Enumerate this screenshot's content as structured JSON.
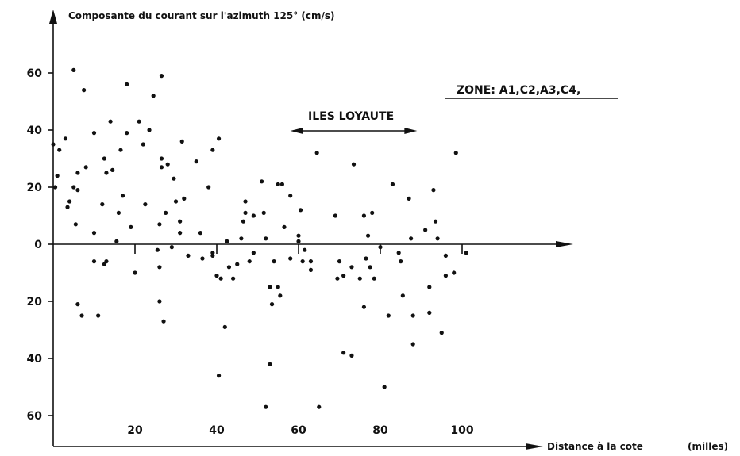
{
  "chart_data": {
    "type": "scatter",
    "title": "Composante du courant sur l'azimuth 125° (cm/s)",
    "xlabel": "Distance à la cote",
    "xlabel_unit": "(milles)",
    "xlim": [
      -2,
      112
    ],
    "ylim": [
      -66,
      78
    ],
    "x_ticks": [
      20,
      40,
      60,
      80,
      100
    ],
    "x_tick_labels": [
      "20",
      "40",
      "60",
      "80",
      "100"
    ],
    "y_ticks": [
      60,
      40,
      20,
      0,
      -20,
      -40,
      -60
    ],
    "y_tick_labels": [
      "60",
      "40",
      "20",
      "0",
      "20",
      "40",
      "60"
    ],
    "grid": false,
    "annotations": {
      "zone": "ZONE: A1,C2,A3,C4,",
      "iles": "ILES LOYAUTE",
      "iles_range": [
        58,
        89
      ]
    },
    "points": [
      [
        0,
        35
      ],
      [
        0.5,
        20
      ],
      [
        1,
        24
      ],
      [
        1.5,
        33
      ],
      [
        3,
        37
      ],
      [
        3.5,
        13
      ],
      [
        4,
        15
      ],
      [
        5,
        61
      ],
      [
        5,
        20
      ],
      [
        5.5,
        7
      ],
      [
        6,
        25
      ],
      [
        6,
        -21
      ],
      [
        6,
        19
      ],
      [
        7,
        -25
      ],
      [
        7.5,
        54
      ],
      [
        8,
        27
      ],
      [
        10,
        4
      ],
      [
        10,
        39
      ],
      [
        10,
        -6
      ],
      [
        11,
        -25
      ],
      [
        12,
        14
      ],
      [
        12.5,
        30
      ],
      [
        12.5,
        -7
      ],
      [
        13,
        25
      ],
      [
        13,
        -6
      ],
      [
        14,
        43
      ],
      [
        14.5,
        26
      ],
      [
        15.5,
        1
      ],
      [
        16,
        11
      ],
      [
        16.5,
        33
      ],
      [
        17,
        17
      ],
      [
        18,
        56
      ],
      [
        18,
        39
      ],
      [
        19,
        6
      ],
      [
        20,
        -10
      ],
      [
        21,
        43
      ],
      [
        22,
        35
      ],
      [
        22.5,
        14
      ],
      [
        23.5,
        40
      ],
      [
        24.5,
        52
      ],
      [
        25.5,
        -2
      ],
      [
        26,
        -8
      ],
      [
        26,
        7
      ],
      [
        26,
        -20
      ],
      [
        26.5,
        59
      ],
      [
        26.5,
        30
      ],
      [
        26.5,
        27
      ],
      [
        27,
        -27
      ],
      [
        27.5,
        11
      ],
      [
        28,
        28
      ],
      [
        29,
        -1
      ],
      [
        29.5,
        23
      ],
      [
        30,
        15
      ],
      [
        31,
        8
      ],
      [
        31,
        4
      ],
      [
        31.5,
        36
      ],
      [
        32,
        16
      ],
      [
        33,
        -4
      ],
      [
        35,
        29
      ],
      [
        36,
        4
      ],
      [
        36.5,
        -5
      ],
      [
        38,
        20
      ],
      [
        39,
        33
      ],
      [
        39,
        -3
      ],
      [
        39,
        -4
      ],
      [
        40,
        -11
      ],
      [
        40.5,
        -46
      ],
      [
        40.5,
        37
      ],
      [
        41,
        -12
      ],
      [
        42,
        -29
      ],
      [
        42.5,
        1
      ],
      [
        43,
        -8
      ],
      [
        44,
        -12
      ],
      [
        45,
        -7
      ],
      [
        46,
        2
      ],
      [
        46.5,
        8
      ],
      [
        47,
        15
      ],
      [
        47,
        11
      ],
      [
        48,
        -6
      ],
      [
        49,
        -3
      ],
      [
        49,
        10
      ],
      [
        51,
        22
      ],
      [
        51.5,
        11
      ],
      [
        52,
        -57
      ],
      [
        52,
        2
      ],
      [
        53,
        -42
      ],
      [
        53,
        -15
      ],
      [
        53.5,
        -21
      ],
      [
        54,
        -6
      ],
      [
        55,
        -15
      ],
      [
        55,
        21
      ],
      [
        55.5,
        -18
      ],
      [
        56,
        21
      ],
      [
        56.5,
        6
      ],
      [
        58,
        17
      ],
      [
        58,
        -5
      ],
      [
        60,
        1
      ],
      [
        60,
        3
      ],
      [
        60.5,
        12
      ],
      [
        61,
        -6
      ],
      [
        61.5,
        -2
      ],
      [
        63,
        -6
      ],
      [
        63,
        -9
      ],
      [
        64.5,
        32
      ],
      [
        65,
        -57
      ],
      [
        69,
        10
      ],
      [
        69.5,
        -12
      ],
      [
        70,
        -6
      ],
      [
        71,
        -38
      ],
      [
        71,
        -11
      ],
      [
        73,
        -39
      ],
      [
        73,
        -8
      ],
      [
        73.5,
        28
      ],
      [
        75,
        -12
      ],
      [
        76,
        10
      ],
      [
        76,
        -22
      ],
      [
        76.5,
        -5
      ],
      [
        77,
        3
      ],
      [
        77.5,
        -8
      ],
      [
        78,
        11
      ],
      [
        78.5,
        -12
      ],
      [
        80,
        -1
      ],
      [
        81,
        -50
      ],
      [
        82,
        -25
      ],
      [
        83,
        21
      ],
      [
        84.5,
        -3
      ],
      [
        85,
        -6
      ],
      [
        85.5,
        -18
      ],
      [
        87,
        16
      ],
      [
        87.5,
        2
      ],
      [
        88,
        -25
      ],
      [
        88,
        -35
      ],
      [
        91,
        5
      ],
      [
        92,
        -15
      ],
      [
        92,
        -24
      ],
      [
        93,
        19
      ],
      [
        93.5,
        8
      ],
      [
        94,
        2
      ],
      [
        95,
        -31
      ],
      [
        96,
        -4
      ],
      [
        96,
        -11
      ],
      [
        98,
        -10
      ],
      [
        98.5,
        32
      ],
      [
        101,
        -3
      ]
    ]
  }
}
